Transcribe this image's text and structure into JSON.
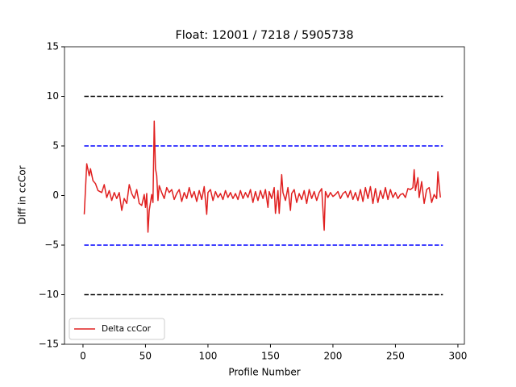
{
  "chart_data": {
    "type": "line",
    "title": "Float: 12001 / 7218 / 5905738",
    "xlabel": "Profile Number",
    "ylabel": "Diff in ccCor",
    "xlim": [
      -14.8,
      305.2
    ],
    "ylim": [
      -15,
      15
    ],
    "xticks": [
      0,
      50,
      100,
      150,
      200,
      250,
      300
    ],
    "yticks": [
      {
        "value": -15,
        "label": "−15"
      },
      {
        "value": -10,
        "label": "−10"
      },
      {
        "value": -5,
        "label": "−5"
      },
      0,
      5,
      10,
      15
    ],
    "legend": "lower left",
    "reference_lines": [
      {
        "y": 10,
        "x": [
          1,
          288
        ],
        "color": "#000000"
      },
      {
        "y": -10,
        "x": [
          1,
          288
        ],
        "color": "#000000"
      },
      {
        "y": 5,
        "x": [
          1,
          288
        ],
        "color": "#0000ff"
      },
      {
        "y": -5,
        "x": [
          1,
          288
        ],
        "color": "#0000ff"
      }
    ],
    "series": [
      {
        "name": "Delta ccCor",
        "color": "#e02020",
        "x": [
          1,
          3,
          5,
          6,
          8,
          10,
          12,
          15,
          17,
          19,
          21,
          23,
          25,
          27,
          29,
          31,
          33,
          35,
          37,
          39,
          41,
          43,
          45,
          47,
          49,
          50,
          51,
          52,
          53,
          55,
          56,
          57,
          58,
          59,
          60,
          61,
          63,
          65,
          67,
          69,
          71,
          73,
          75,
          77,
          79,
          81,
          83,
          85,
          87,
          89,
          91,
          93,
          95,
          97,
          99,
          100,
          102,
          104,
          106,
          108,
          110,
          112,
          114,
          116,
          118,
          120,
          122,
          124,
          126,
          128,
          130,
          132,
          134,
          136,
          138,
          140,
          142,
          144,
          146,
          148,
          149,
          151,
          153,
          154,
          156,
          157,
          159,
          160,
          162,
          164,
          166,
          167,
          169,
          171,
          173,
          175,
          177,
          179,
          181,
          183,
          185,
          187,
          189,
          191,
          193,
          194,
          196,
          198,
          200,
          202,
          204,
          206,
          208,
          210,
          212,
          214,
          216,
          218,
          220,
          222,
          224,
          226,
          228,
          230,
          232,
          234,
          236,
          238,
          240,
          242,
          244,
          246,
          248,
          250,
          252,
          254,
          256,
          258,
          260,
          262,
          264,
          265,
          266,
          268,
          269,
          271,
          273,
          275,
          277,
          279,
          281,
          283,
          284,
          285,
          286
        ],
        "values": [
          -1.9,
          3.2,
          2.0,
          2.7,
          1.5,
          1.2,
          0.5,
          0.3,
          1.1,
          -0.2,
          0.5,
          -0.5,
          0.3,
          -0.3,
          0.3,
          -1.5,
          -0.3,
          -0.8,
          1.1,
          0.2,
          -0.3,
          0.6,
          -0.8,
          -1.0,
          0.1,
          -1.2,
          0.2,
          -3.7,
          -1.5,
          0.1,
          -0.7,
          7.5,
          2.7,
          2.0,
          -0.5,
          1.0,
          0.3,
          -0.3,
          0.8,
          0.3,
          0.6,
          -0.4,
          0.2,
          0.6,
          -0.6,
          0.3,
          -0.3,
          0.8,
          -0.2,
          0.4,
          -0.6,
          0.5,
          -0.4,
          0.9,
          -1.9,
          0.3,
          0.6,
          -0.5,
          0.4,
          -0.2,
          0.2,
          -0.4,
          0.5,
          -0.2,
          0.3,
          -0.3,
          0.2,
          -0.4,
          0.5,
          -0.3,
          0.3,
          -0.2,
          0.6,
          -0.7,
          0.4,
          -0.5,
          0.5,
          -0.3,
          0.6,
          -1.2,
          0.4,
          -0.3,
          0.8,
          -1.8,
          0.5,
          -1.8,
          2.1,
          0.3,
          -0.5,
          0.8,
          -1.5,
          0.2,
          0.6,
          -0.7,
          0.2,
          -0.4,
          0.5,
          -0.8,
          0.6,
          -0.3,
          0.4,
          -0.5,
          0.3,
          0.7,
          -3.5,
          0.4,
          -0.2,
          0.3,
          -0.1,
          0.1,
          0.4,
          -0.3,
          0.2,
          0.4,
          -0.2,
          0.5,
          -0.4,
          0.3,
          -0.5,
          0.6,
          -0.6,
          0.8,
          -0.3,
          0.9,
          -0.8,
          0.7,
          -0.7,
          0.5,
          -0.3,
          0.8,
          -0.4,
          0.6,
          -0.2,
          0.3,
          -0.3,
          0.1,
          0.2,
          -0.2,
          0.7,
          0.6,
          0.8,
          2.6,
          0.5,
          1.8,
          -0.2,
          1.4,
          -0.8,
          0.6,
          0.8,
          -0.7,
          0.1,
          -0.3,
          2.4,
          1.0,
          -0.2
        ]
      }
    ]
  }
}
